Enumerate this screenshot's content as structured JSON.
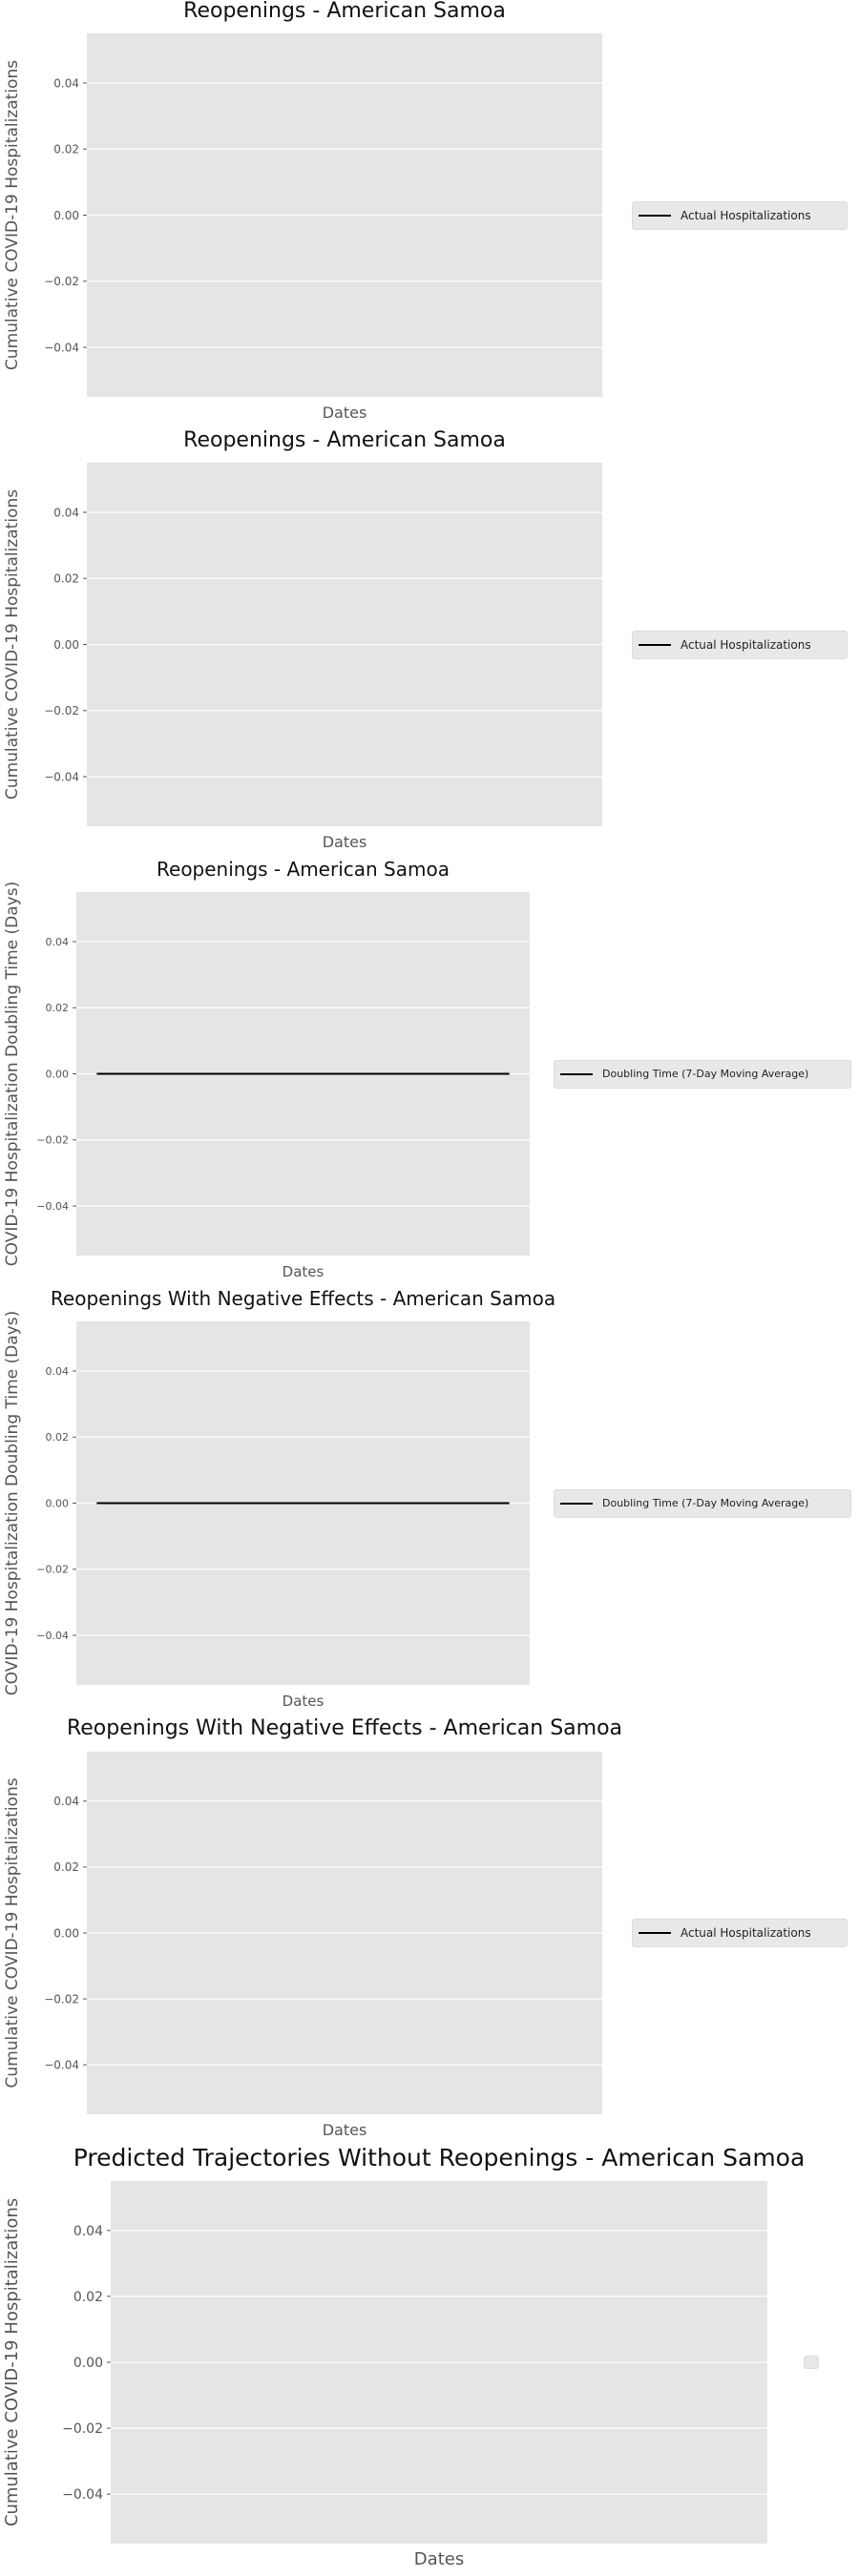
{
  "chart_data": [
    {
      "type": "line",
      "title": "Reopenings - American Samoa",
      "xlabel": "Dates",
      "ylabel": "Cumulative COVID-19 Hospitalizations",
      "ylim": [
        -0.055,
        0.055
      ],
      "yticks": [
        -0.04,
        -0.02,
        0.0,
        0.02,
        0.04
      ],
      "ytick_labels": [
        "−0.04",
        "−0.02",
        "0.00",
        "0.02",
        "0.04"
      ],
      "grid": true,
      "legend_placement": "right",
      "series": [
        {
          "name": "Actual Hospitalizations",
          "color": "#000000",
          "values": []
        }
      ]
    },
    {
      "type": "line",
      "title": "Reopenings - American Samoa",
      "xlabel": "Dates",
      "ylabel": "Cumulative COVID-19 Hospitalizations",
      "ylim": [
        -0.055,
        0.055
      ],
      "yticks": [
        -0.04,
        -0.02,
        0.0,
        0.02,
        0.04
      ],
      "ytick_labels": [
        "−0.04",
        "−0.02",
        "0.00",
        "0.02",
        "0.04"
      ],
      "grid": true,
      "legend_placement": "right",
      "series": [
        {
          "name": "Actual Hospitalizations",
          "color": "#000000",
          "values": []
        }
      ]
    },
    {
      "type": "line",
      "title": "Reopenings - American Samoa",
      "xlabel": "Dates",
      "ylabel": "COVID-19 Hospitalization Doubling Time (Days)",
      "ylim": [
        -0.055,
        0.055
      ],
      "yticks": [
        -0.04,
        -0.02,
        0.0,
        0.02,
        0.04
      ],
      "ytick_labels": [
        "−0.04",
        "−0.02",
        "0.00",
        "0.02",
        "0.04"
      ],
      "grid": true,
      "legend_placement": "right",
      "series": [
        {
          "name": "Doubling Time (7-Day Moving Average)",
          "color": "#000000",
          "values": [
            0,
            0
          ]
        }
      ]
    },
    {
      "type": "line",
      "title": "Reopenings With Negative Effects - American Samoa",
      "xlabel": "Dates",
      "ylabel": "COVID-19 Hospitalization Doubling Time (Days)",
      "ylim": [
        -0.055,
        0.055
      ],
      "yticks": [
        -0.04,
        -0.02,
        0.0,
        0.02,
        0.04
      ],
      "ytick_labels": [
        "−0.04",
        "−0.02",
        "0.00",
        "0.02",
        "0.04"
      ],
      "grid": true,
      "legend_placement": "right",
      "series": [
        {
          "name": "Doubling Time (7-Day Moving Average)",
          "color": "#000000",
          "values": [
            0,
            0
          ]
        }
      ]
    },
    {
      "type": "line",
      "title": "Reopenings With Negative Effects - American Samoa",
      "xlabel": "Dates",
      "ylabel": "Cumulative COVID-19 Hospitalizations",
      "ylim": [
        -0.055,
        0.055
      ],
      "yticks": [
        -0.04,
        -0.02,
        0.0,
        0.02,
        0.04
      ],
      "ytick_labels": [
        "−0.04",
        "−0.02",
        "0.00",
        "0.02",
        "0.04"
      ],
      "grid": true,
      "legend_placement": "right",
      "series": [
        {
          "name": "Actual Hospitalizations",
          "color": "#000000",
          "values": []
        }
      ]
    },
    {
      "type": "line",
      "title": "Predicted Trajectories Without Reopenings - American Samoa",
      "xlabel": "Dates",
      "ylabel": "Cumulative COVID-19 Hospitalizations",
      "ylim": [
        -0.055,
        0.055
      ],
      "yticks": [
        -0.04,
        -0.02,
        0.0,
        0.02,
        0.04
      ],
      "ytick_labels": [
        "−0.04",
        "−0.02",
        "0.00",
        "0.02",
        "0.04"
      ],
      "grid": true,
      "legend_placement": "right",
      "series": []
    }
  ]
}
